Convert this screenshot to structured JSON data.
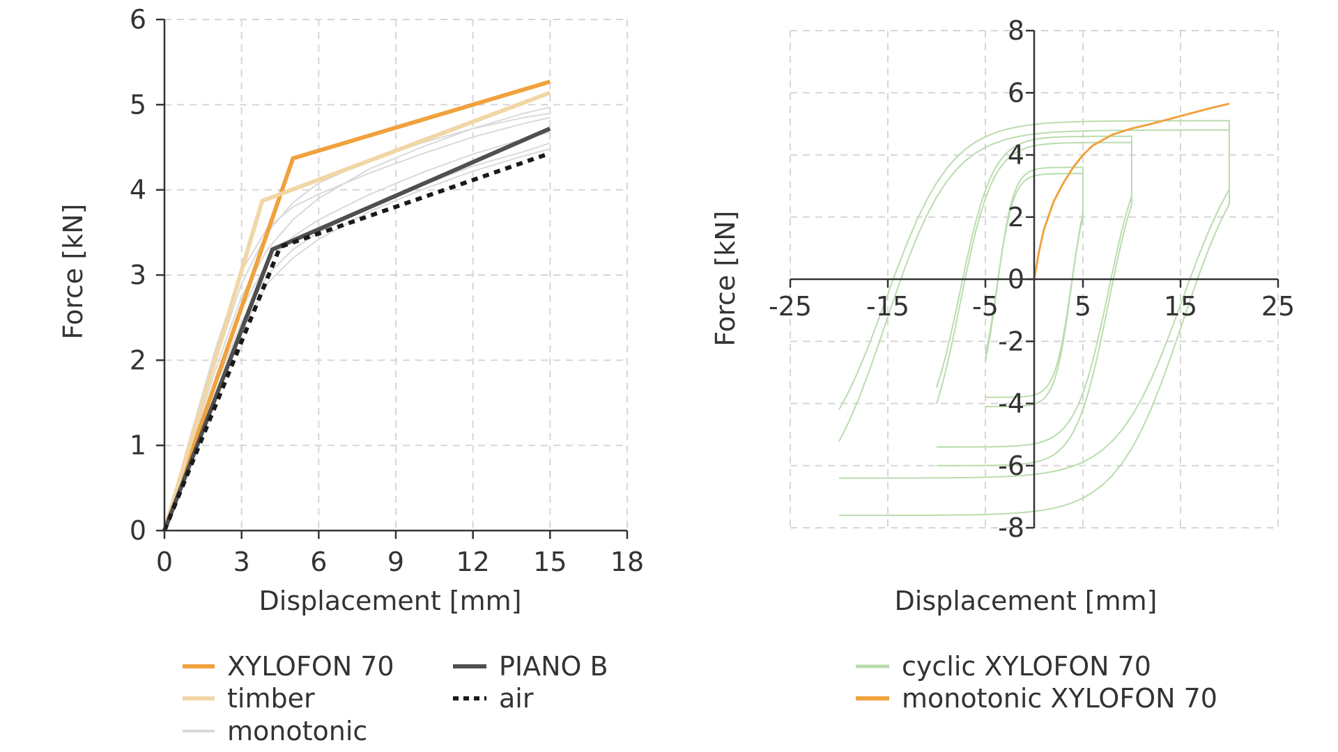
{
  "chart_data": [
    {
      "type": "line",
      "xlabel": "Displacement [mm]",
      "ylabel": "Force [kN]",
      "xlim": [
        0,
        18
      ],
      "ylim": [
        0,
        6
      ],
      "xticks": [
        0,
        3,
        6,
        9,
        12,
        15,
        18
      ],
      "yticks": [
        0,
        1,
        2,
        3,
        4,
        5,
        6
      ],
      "grid": true,
      "legend_position": "bottom",
      "series": [
        {
          "name": "XYLOFON 70",
          "color": "#f0a23e",
          "style": "solid",
          "x": [
            0,
            5,
            15
          ],
          "y": [
            0,
            4.37,
            5.27
          ]
        },
        {
          "name": "timber",
          "color": "#f1d6a6",
          "style": "solid",
          "x": [
            0,
            3.8,
            15
          ],
          "y": [
            0,
            3.87,
            5.14
          ]
        },
        {
          "name": "PIANO B",
          "color": "#4f4f4f",
          "style": "solid",
          "x": [
            0,
            4.2,
            15
          ],
          "y": [
            0,
            3.3,
            4.72
          ]
        },
        {
          "name": "air",
          "color": "#1a1a1a",
          "style": "dotted",
          "x": [
            0,
            4.5,
            15
          ],
          "y": [
            0,
            3.33,
            4.43
          ]
        },
        {
          "name": "monotonic",
          "color": "#d9d9d9",
          "style": "solid",
          "curves": [
            {
              "x": [
                0,
                1,
                2,
                3,
                4,
                5,
                6,
                8,
                10,
                12,
                14,
                15
              ],
              "y": [
                0,
                1.0,
                2.0,
                2.9,
                3.5,
                3.85,
                4.08,
                4.35,
                4.55,
                4.72,
                4.85,
                4.9
              ]
            },
            {
              "x": [
                0,
                1,
                2,
                3,
                4,
                5,
                6,
                8,
                10,
                12,
                14,
                15
              ],
              "y": [
                0,
                0.9,
                1.8,
                2.6,
                3.15,
                3.45,
                3.65,
                3.95,
                4.2,
                4.42,
                4.6,
                4.68
              ]
            },
            {
              "x": [
                0,
                1,
                2,
                3,
                4,
                5,
                6,
                8,
                10,
                12,
                14,
                15
              ],
              "y": [
                0,
                0.85,
                1.7,
                2.45,
                3.0,
                3.3,
                3.5,
                3.8,
                4.05,
                4.28,
                4.45,
                4.55
              ]
            },
            {
              "x": [
                0,
                1,
                2,
                3,
                4,
                5,
                6,
                8,
                10,
                12,
                14,
                15
              ],
              "y": [
                0,
                1.1,
                2.15,
                3.05,
                3.55,
                3.8,
                3.95,
                4.2,
                4.42,
                4.62,
                4.78,
                4.85
              ]
            },
            {
              "x": [
                0,
                1,
                2,
                3,
                4,
                5,
                6,
                8,
                10,
                12,
                14,
                15
              ],
              "y": [
                0,
                0.95,
                1.9,
                2.75,
                3.3,
                3.65,
                3.9,
                4.25,
                4.5,
                4.72,
                4.9,
                4.97
              ]
            },
            {
              "x": [
                0,
                1,
                2,
                3,
                4,
                5,
                6,
                8,
                10,
                12,
                14,
                15
              ],
              "y": [
                0,
                0.8,
                1.6,
                2.35,
                2.9,
                3.2,
                3.42,
                3.75,
                4.0,
                4.22,
                4.4,
                4.48
              ]
            }
          ]
        }
      ]
    },
    {
      "type": "line",
      "xlabel": "Displacement [mm]",
      "ylabel": "Force [kN]",
      "xlim": [
        -25,
        25
      ],
      "ylim": [
        -8,
        8
      ],
      "xticks": [
        -25,
        -15,
        -5,
        5,
        15,
        25
      ],
      "yticks": [
        -8,
        -6,
        -4,
        -2,
        0,
        2,
        4,
        6,
        8
      ],
      "grid": true,
      "legend_position": "bottom",
      "series": [
        {
          "name": "cyclic XYLOFON 70",
          "color": "#b9dcae",
          "style": "solid",
          "loops": [
            {
              "amplitude": 5,
              "fmax": 3.6,
              "fmin": -4.1
            },
            {
              "amplitude": 5,
              "fmax": 3.4,
              "fmin": -3.8
            },
            {
              "amplitude": 10,
              "fmax": 4.6,
              "fmin": -5.4
            },
            {
              "amplitude": 10,
              "fmax": 4.4,
              "fmin": -6.0
            },
            {
              "amplitude": 20,
              "fmax": 5.1,
              "fmin": -6.4
            },
            {
              "amplitude": 20,
              "fmax": 4.8,
              "fmin": -7.6
            }
          ]
        },
        {
          "name": "monotonic XYLOFON 70",
          "color": "#f0a23e",
          "style": "solid",
          "x": [
            0,
            0.5,
            1,
            2,
            3,
            4,
            5,
            6,
            8,
            10,
            12,
            15,
            18,
            20
          ],
          "y": [
            0,
            0.9,
            1.6,
            2.5,
            3.1,
            3.6,
            4.0,
            4.3,
            4.65,
            4.85,
            5.0,
            5.25,
            5.5,
            5.65
          ]
        }
      ]
    }
  ]
}
